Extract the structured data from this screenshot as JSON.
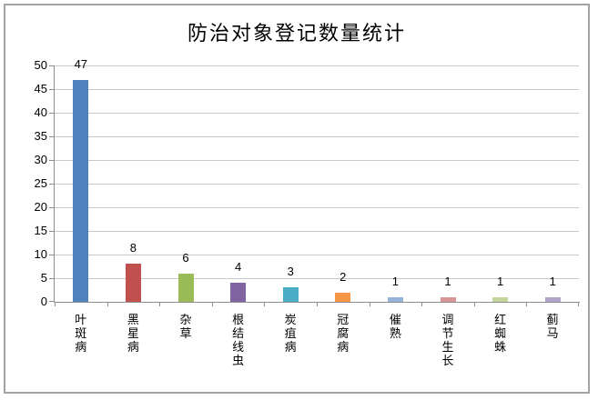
{
  "chart_data": {
    "type": "bar",
    "title": "防治对象登记数量统计",
    "categories": [
      "叶斑病",
      "黑星病",
      "杂草",
      "根结线虫",
      "炭疽病",
      "冠腐病",
      "催熟",
      "调节生长",
      "红蜘蛛",
      "蓟马"
    ],
    "values": [
      47,
      8,
      6,
      4,
      3,
      2,
      1,
      1,
      1,
      1
    ],
    "value_labels": [
      "47",
      "8",
      "6",
      "4",
      "3",
      "2",
      "1",
      "1",
      "1",
      "1"
    ],
    "bar_colors": [
      "#4F81BD",
      "#C0504D",
      "#9BBB59",
      "#8064A2",
      "#4BACC6",
      "#F79646",
      "#95B3D7",
      "#D99694",
      "#C3D69B",
      "#B3A2C7"
    ],
    "y_ticks": [
      0,
      5,
      10,
      15,
      20,
      25,
      30,
      35,
      40,
      45,
      50
    ],
    "ylim": [
      0,
      50
    ],
    "xlabel": "",
    "ylabel": "",
    "grid": true,
    "legend_position": "none",
    "category_text_orientation": "vertical-stacked"
  },
  "colors": {
    "background": "#ffffff",
    "border": "#a3a3a3",
    "axis": "#8e8e8e",
    "gridline": "#c9c9c9",
    "text": "#000000"
  }
}
